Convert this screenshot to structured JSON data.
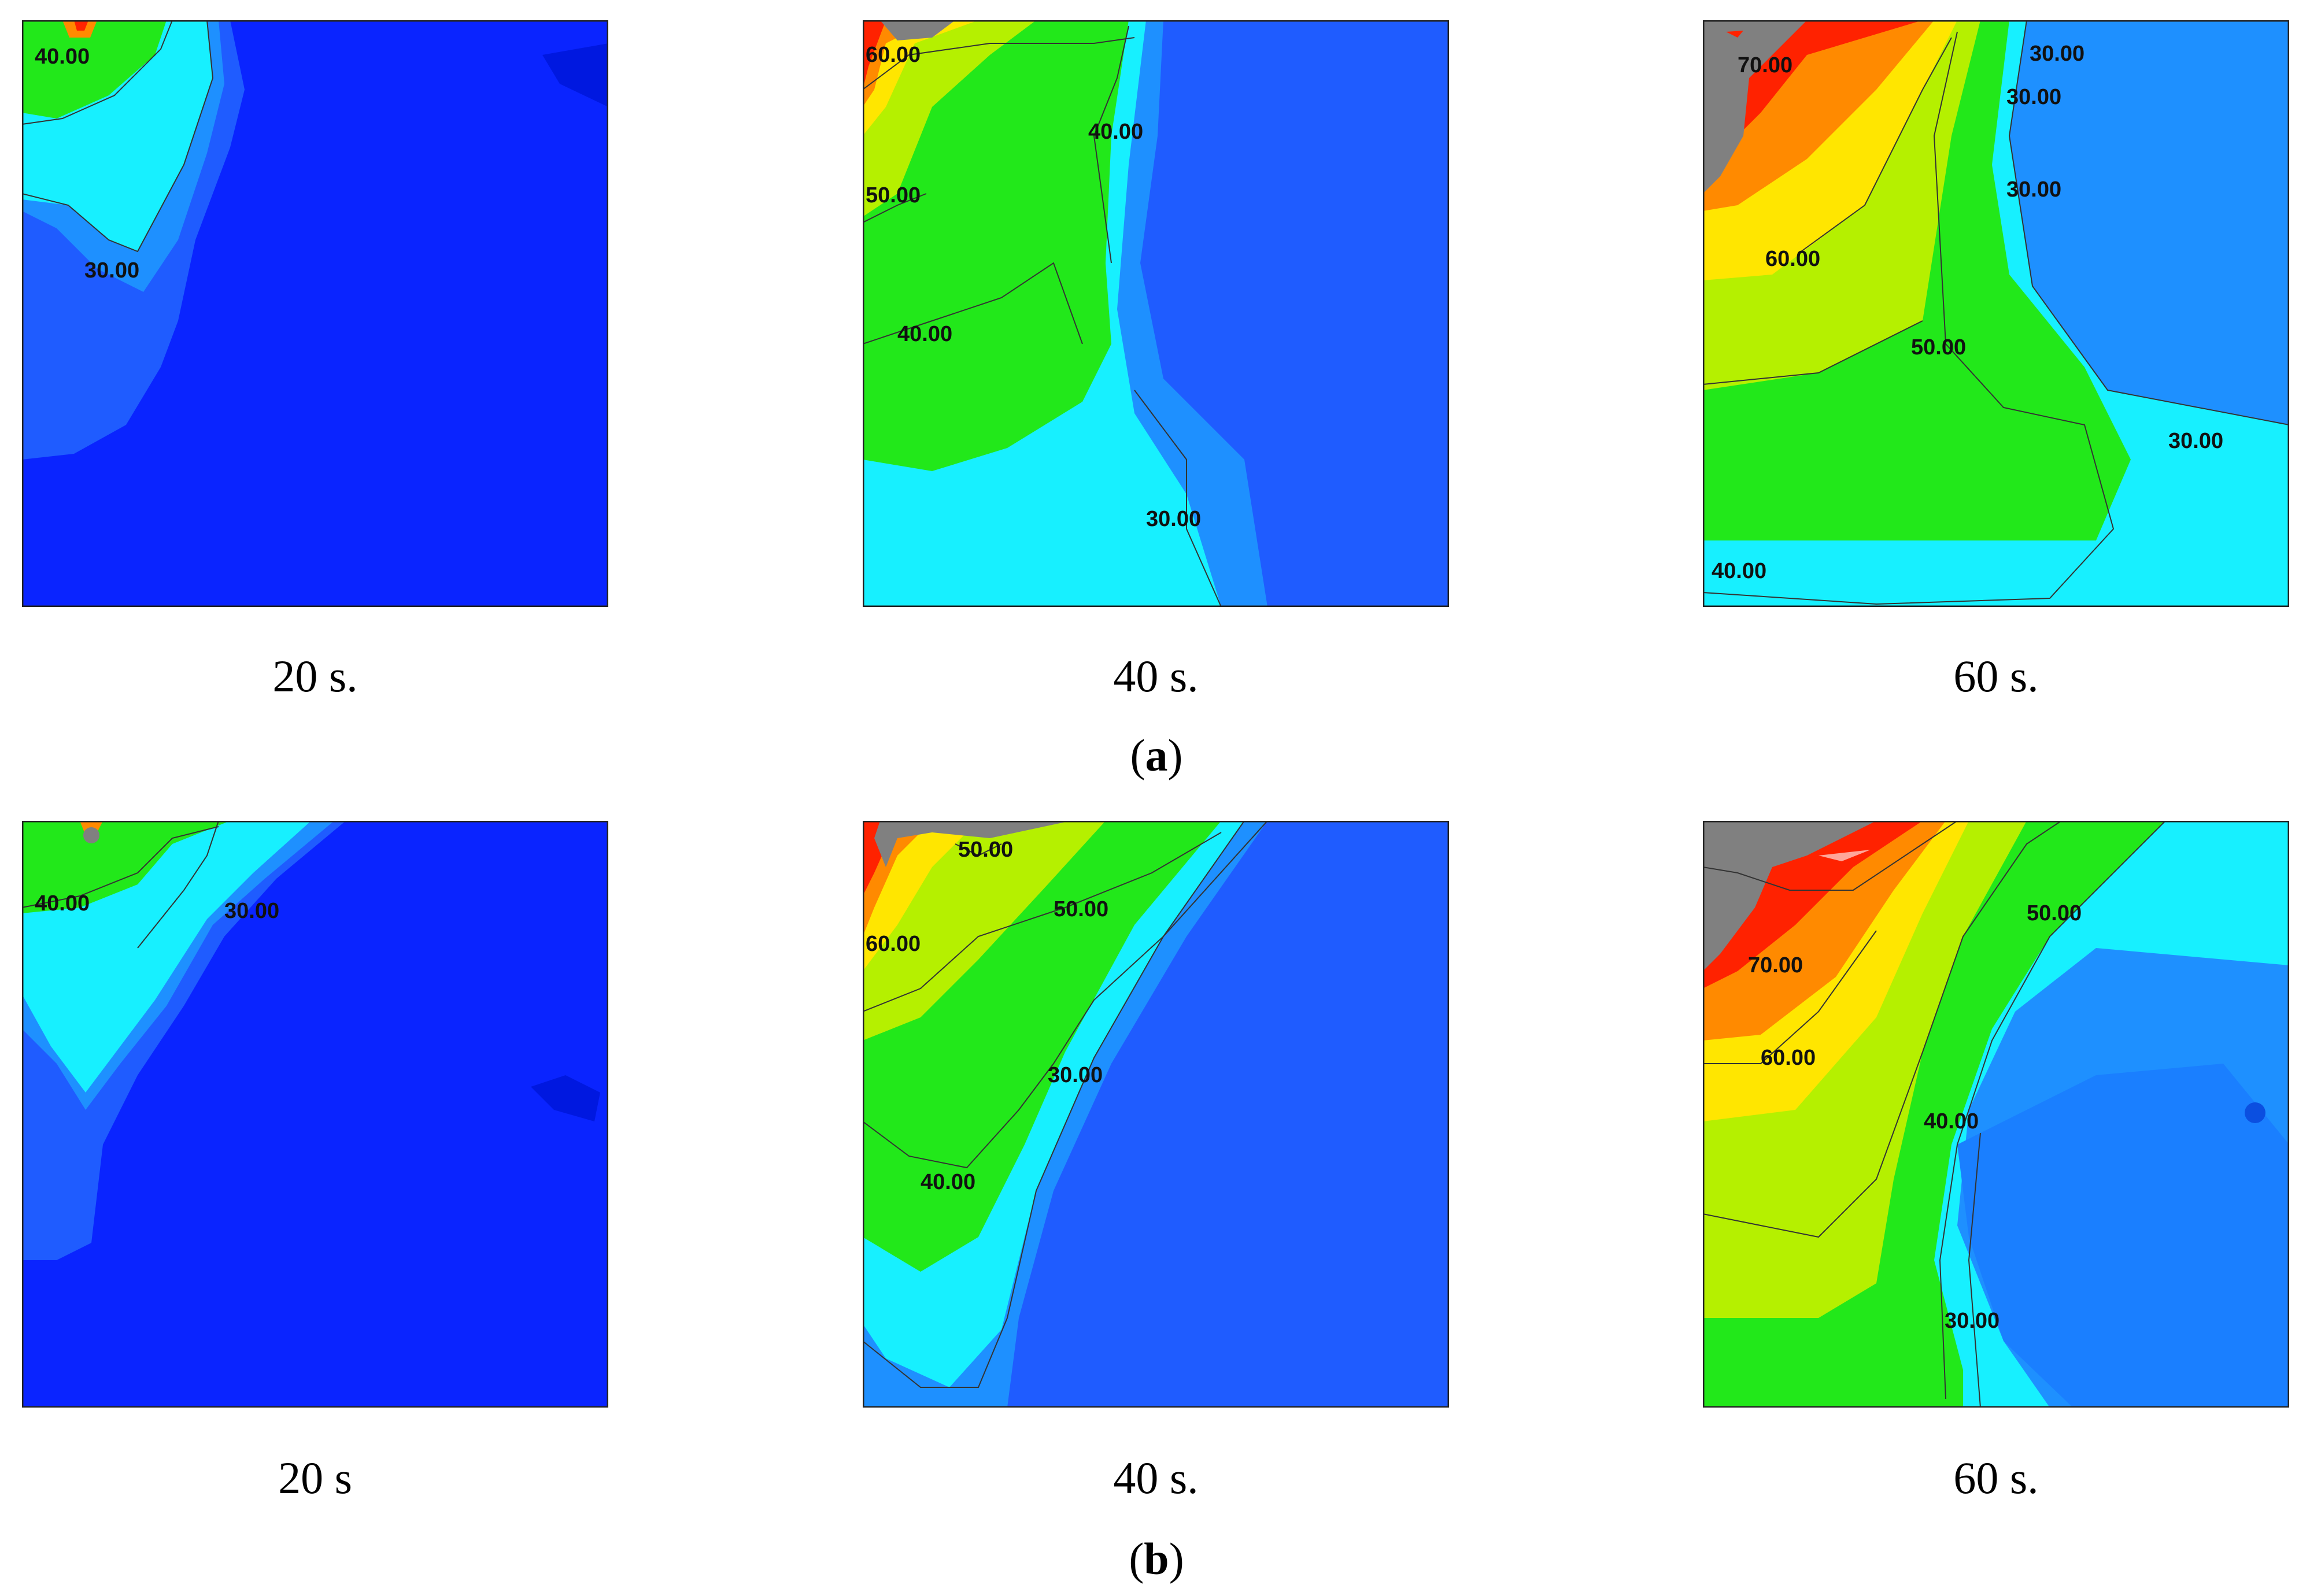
{
  "rows": [
    {
      "label_open": "(",
      "label_letter": "a",
      "label_close": ")",
      "panels": [
        {
          "caption": "20 s.",
          "contours": [
            "40.00",
            "30.00"
          ]
        },
        {
          "caption": "40 s.",
          "contours": [
            "60.00",
            "40.00",
            "50.00",
            "40.00",
            "30.00"
          ]
        },
        {
          "caption": "60 s.",
          "contours": [
            "70.00",
            "30.00",
            "30.00",
            "30.00",
            "60.00",
            "50.00",
            "30.00",
            "40.00"
          ]
        }
      ]
    },
    {
      "label_open": "(",
      "label_letter": "b",
      "label_close": ")",
      "panels": [
        {
          "caption": "20 s",
          "contours": [
            "40.00",
            "30.00"
          ]
        },
        {
          "caption": "40 s.",
          "contours": [
            "50.00",
            "50.00",
            "60.00",
            "30.00",
            "40.00"
          ]
        },
        {
          "caption": "60 s.",
          "contours": [
            "50.00",
            "70.00",
            "60.00",
            "40.00",
            "30.00"
          ]
        }
      ]
    }
  ],
  "colors": {
    "cold": "#0a24ff",
    "blue2": "#1f5cff",
    "blue3": "#1e90ff",
    "cyan": "#17f0ff",
    "green": "#22e81a",
    "yellowgreen": "#b5f000",
    "yellow": "#ffe600",
    "orange": "#ff8a00",
    "red": "#ff2200",
    "gray": "#808080"
  }
}
